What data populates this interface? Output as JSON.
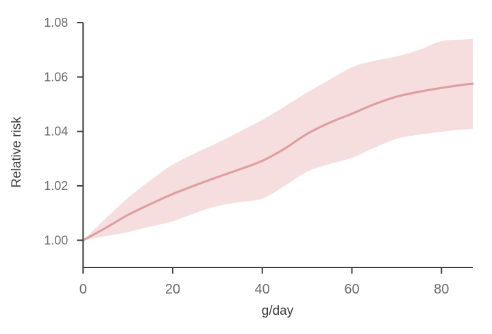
{
  "figure": {
    "background": "#ffffff",
    "title": ""
  },
  "chart_data": {
    "type": "line",
    "title": "",
    "xlabel": "g/day",
    "ylabel": "Relative risk",
    "x": [
      0,
      5,
      10,
      15,
      20,
      25,
      30,
      35,
      40,
      45,
      50,
      55,
      60,
      65,
      70,
      75,
      80,
      85,
      87
    ],
    "series": [
      {
        "name": "relative_risk",
        "role": "line",
        "values": [
          1.0,
          1.0045,
          1.0093,
          1.0133,
          1.017,
          1.0202,
          1.0232,
          1.0261,
          1.0292,
          1.0337,
          1.0391,
          1.0432,
          1.0465,
          1.05,
          1.0528,
          1.0546,
          1.056,
          1.0572,
          1.0575
        ]
      },
      {
        "name": "ci_upper",
        "role": "band_upper",
        "values": [
          1.0,
          1.008,
          1.0156,
          1.022,
          1.0278,
          1.032,
          1.0358,
          1.04,
          1.0443,
          1.0492,
          1.0543,
          1.059,
          1.0636,
          1.066,
          1.0676,
          1.07,
          1.0732,
          1.0738,
          1.074
        ]
      },
      {
        "name": "ci_lower",
        "role": "band_lower",
        "values": [
          1.0,
          1.0015,
          1.003,
          1.005,
          1.007,
          1.01,
          1.0126,
          1.014,
          1.0153,
          1.02,
          1.0252,
          1.028,
          1.0303,
          1.034,
          1.0373,
          1.0388,
          1.0399,
          1.0407,
          1.041
        ]
      }
    ],
    "x_ticks": [
      0,
      20,
      40,
      60,
      80
    ],
    "x_tick_labels": [
      "0",
      "20",
      "40",
      "60",
      "80"
    ],
    "y_ticks": [
      1.0,
      1.02,
      1.04,
      1.06,
      1.08
    ],
    "y_tick_labels": [
      "1.00",
      "1.02",
      "1.04",
      "1.06",
      "1.08"
    ],
    "xlim": [
      0,
      87
    ],
    "ylim": [
      0.99,
      1.08
    ],
    "grid": false,
    "legend": "none",
    "colors": {
      "line": "#de9fa1",
      "band": "#f6dede",
      "axis": "#3f3f3f",
      "tick_label": "#6a6a6a",
      "axis_label": "#3d3d3d"
    }
  }
}
